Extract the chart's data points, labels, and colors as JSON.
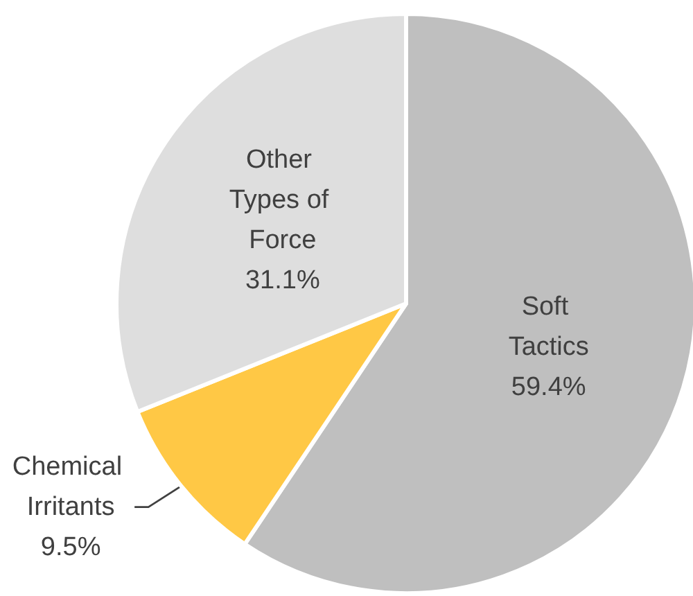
{
  "chart_data": {
    "type": "pie",
    "categories": [
      "Soft Tactics",
      "Chemical Irritants",
      "Other Types of Force"
    ],
    "values": [
      59.4,
      9.5,
      31.1
    ],
    "colors": [
      "#bfbfbf",
      "#ffc845",
      "#dedede"
    ],
    "value_labels": [
      "59.4%",
      "9.5%",
      "31.1%"
    ]
  }
}
